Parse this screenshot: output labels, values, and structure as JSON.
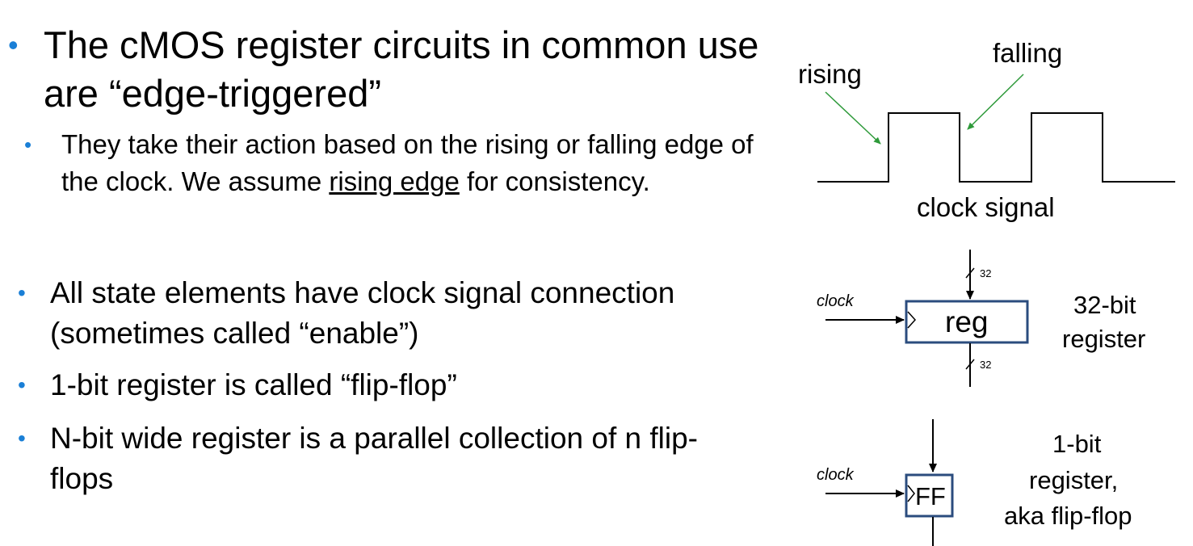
{
  "bullets": {
    "b1": {
      "marker": "•",
      "text": "The cMOS register circuits in common use are “edge-triggered”"
    },
    "b2": {
      "marker": "•",
      "text_before": "They take their action based on the rising or falling edge of the clock.  We assume ",
      "text_underlined": "rising edge",
      "text_after": " for consistency."
    },
    "b3": {
      "marker": "•",
      "text": "All state elements have clock signal connection (sometimes called “enable”)"
    },
    "b4": {
      "marker": "•",
      "text": "1-bit register is called “flip-flop”"
    },
    "b5": {
      "marker": "•",
      "text": "N-bit wide register is a parallel collection of n flip-flops"
    }
  },
  "clock_diagram": {
    "rising_label": "rising",
    "falling_label": "falling",
    "caption": "clock signal"
  },
  "register_diagram": {
    "clock_label": "clock",
    "box_label": "reg",
    "input_width": "32",
    "output_width": "32",
    "desc_line1": "32-bit",
    "desc_line2": "register"
  },
  "flipflop_diagram": {
    "clock_label": "clock",
    "box_label": "FF",
    "desc_line1": "1-bit",
    "desc_line2": "register,",
    "desc_line3": "aka flip-flop"
  },
  "colors": {
    "bullet": "#1a7fd6",
    "arrow": "#2e9a3a",
    "box_border": "#2b4c7e",
    "text": "#000000"
  }
}
